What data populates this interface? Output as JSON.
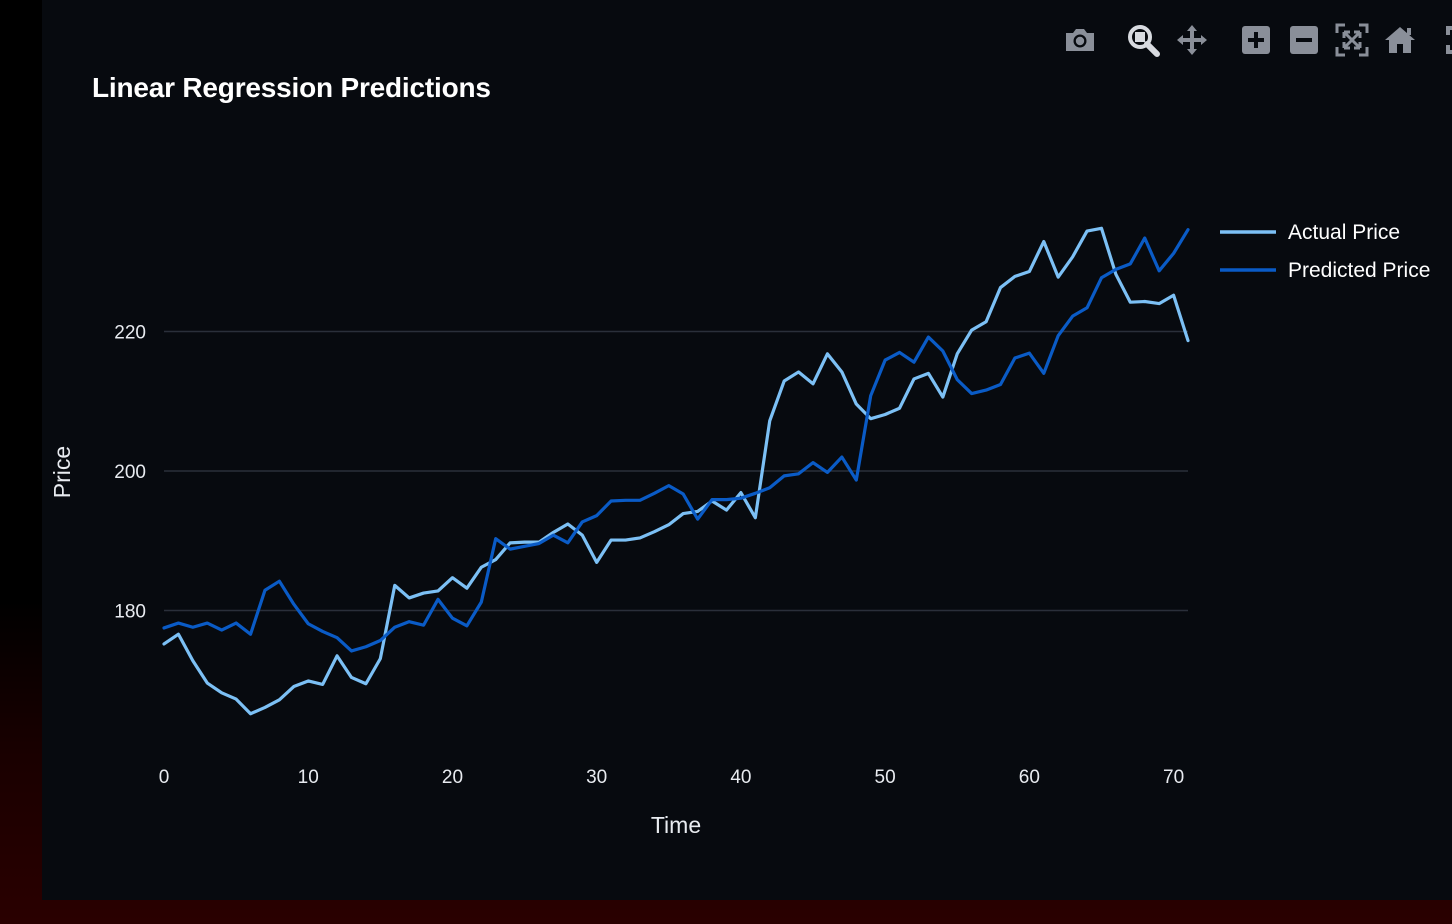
{
  "toolbar": {
    "buttons": [
      {
        "icon": "camera-icon",
        "name": "download-plot-button"
      },
      {
        "icon": "zoom-icon",
        "name": "zoom-button"
      },
      {
        "icon": "pan-icon",
        "name": "pan-button"
      },
      {
        "icon": "zoom-in-icon",
        "name": "zoom-in-button"
      },
      {
        "icon": "zoom-out-icon",
        "name": "zoom-out-button"
      },
      {
        "icon": "autoscale-icon",
        "name": "autoscale-button"
      },
      {
        "icon": "reset-axes-icon",
        "name": "reset-axes-button"
      },
      {
        "icon": "fullscreen-icon",
        "name": "fullscreen-button"
      }
    ],
    "active": "zoom-button"
  },
  "colors": {
    "background": "#070a0f",
    "grid": "#2a2f3a",
    "actual": "#7cc0f5",
    "predicted": "#0a5bc6",
    "text": "#e8ebf0",
    "toolbar_icon": "#8a8f99",
    "toolbar_active": "#d8dbe0"
  },
  "chart_data": {
    "type": "line",
    "title": "Linear Regression Predictions",
    "xlabel": "Time",
    "ylabel": "Price",
    "xlim": [
      0,
      71
    ],
    "ylim": [
      160,
      240
    ],
    "x_ticks": [
      0,
      10,
      20,
      30,
      40,
      50,
      60,
      70
    ],
    "y_ticks": [
      180,
      200,
      220
    ],
    "grid": true,
    "legend_position": "top-right",
    "series": [
      {
        "name": "Actual Price",
        "color": "#7cc0f5",
        "values": [
          175.2,
          176.6,
          172.8,
          169.6,
          168.2,
          167.3,
          165.2,
          166.1,
          167.2,
          169.1,
          169.9,
          169.4,
          173.5,
          170.4,
          169.5,
          173.1,
          183.6,
          181.8,
          182.5,
          182.8,
          184.7,
          183.2,
          186.2,
          187.3,
          189.7,
          189.8,
          189.8,
          191.2,
          192.4,
          190.8,
          186.9,
          190.1,
          190.1,
          190.4,
          191.3,
          192.3,
          193.9,
          194.2,
          195.7,
          194.4,
          196.9,
          193.3,
          207.2,
          212.9,
          214.2,
          212.5,
          216.8,
          214.2,
          209.6,
          207.5,
          208.1,
          209.0,
          213.2,
          214.0,
          210.6,
          216.8,
          220.2,
          221.4,
          226.3,
          227.9,
          228.6,
          232.9,
          227.8,
          230.7,
          234.4,
          234.8,
          228.2,
          224.2,
          224.3,
          224.0,
          225.2,
          218.7
        ]
      },
      {
        "name": "Predicted Price",
        "color": "#0a5bc6",
        "values": [
          177.5,
          178.2,
          177.6,
          178.2,
          177.2,
          178.2,
          176.6,
          182.9,
          184.2,
          180.9,
          178.1,
          177.0,
          176.1,
          174.2,
          174.8,
          175.7,
          177.6,
          178.4,
          177.9,
          181.6,
          178.9,
          177.8,
          181.2,
          190.3,
          188.8,
          189.2,
          189.6,
          190.8,
          189.7,
          192.7,
          193.6,
          195.7,
          195.8,
          195.8,
          196.8,
          197.9,
          196.7,
          193.1,
          195.9,
          195.9,
          196.1,
          196.8,
          197.6,
          199.3,
          199.6,
          201.2,
          199.8,
          202.0,
          198.7,
          210.8,
          215.9,
          217.0,
          215.6,
          219.2,
          217.2,
          213.1,
          211.1,
          211.6,
          212.4,
          216.2,
          216.9,
          214.0,
          219.4,
          222.2,
          223.4,
          227.7,
          228.9,
          229.7,
          233.4,
          228.7,
          231.2,
          234.6
        ]
      }
    ]
  }
}
